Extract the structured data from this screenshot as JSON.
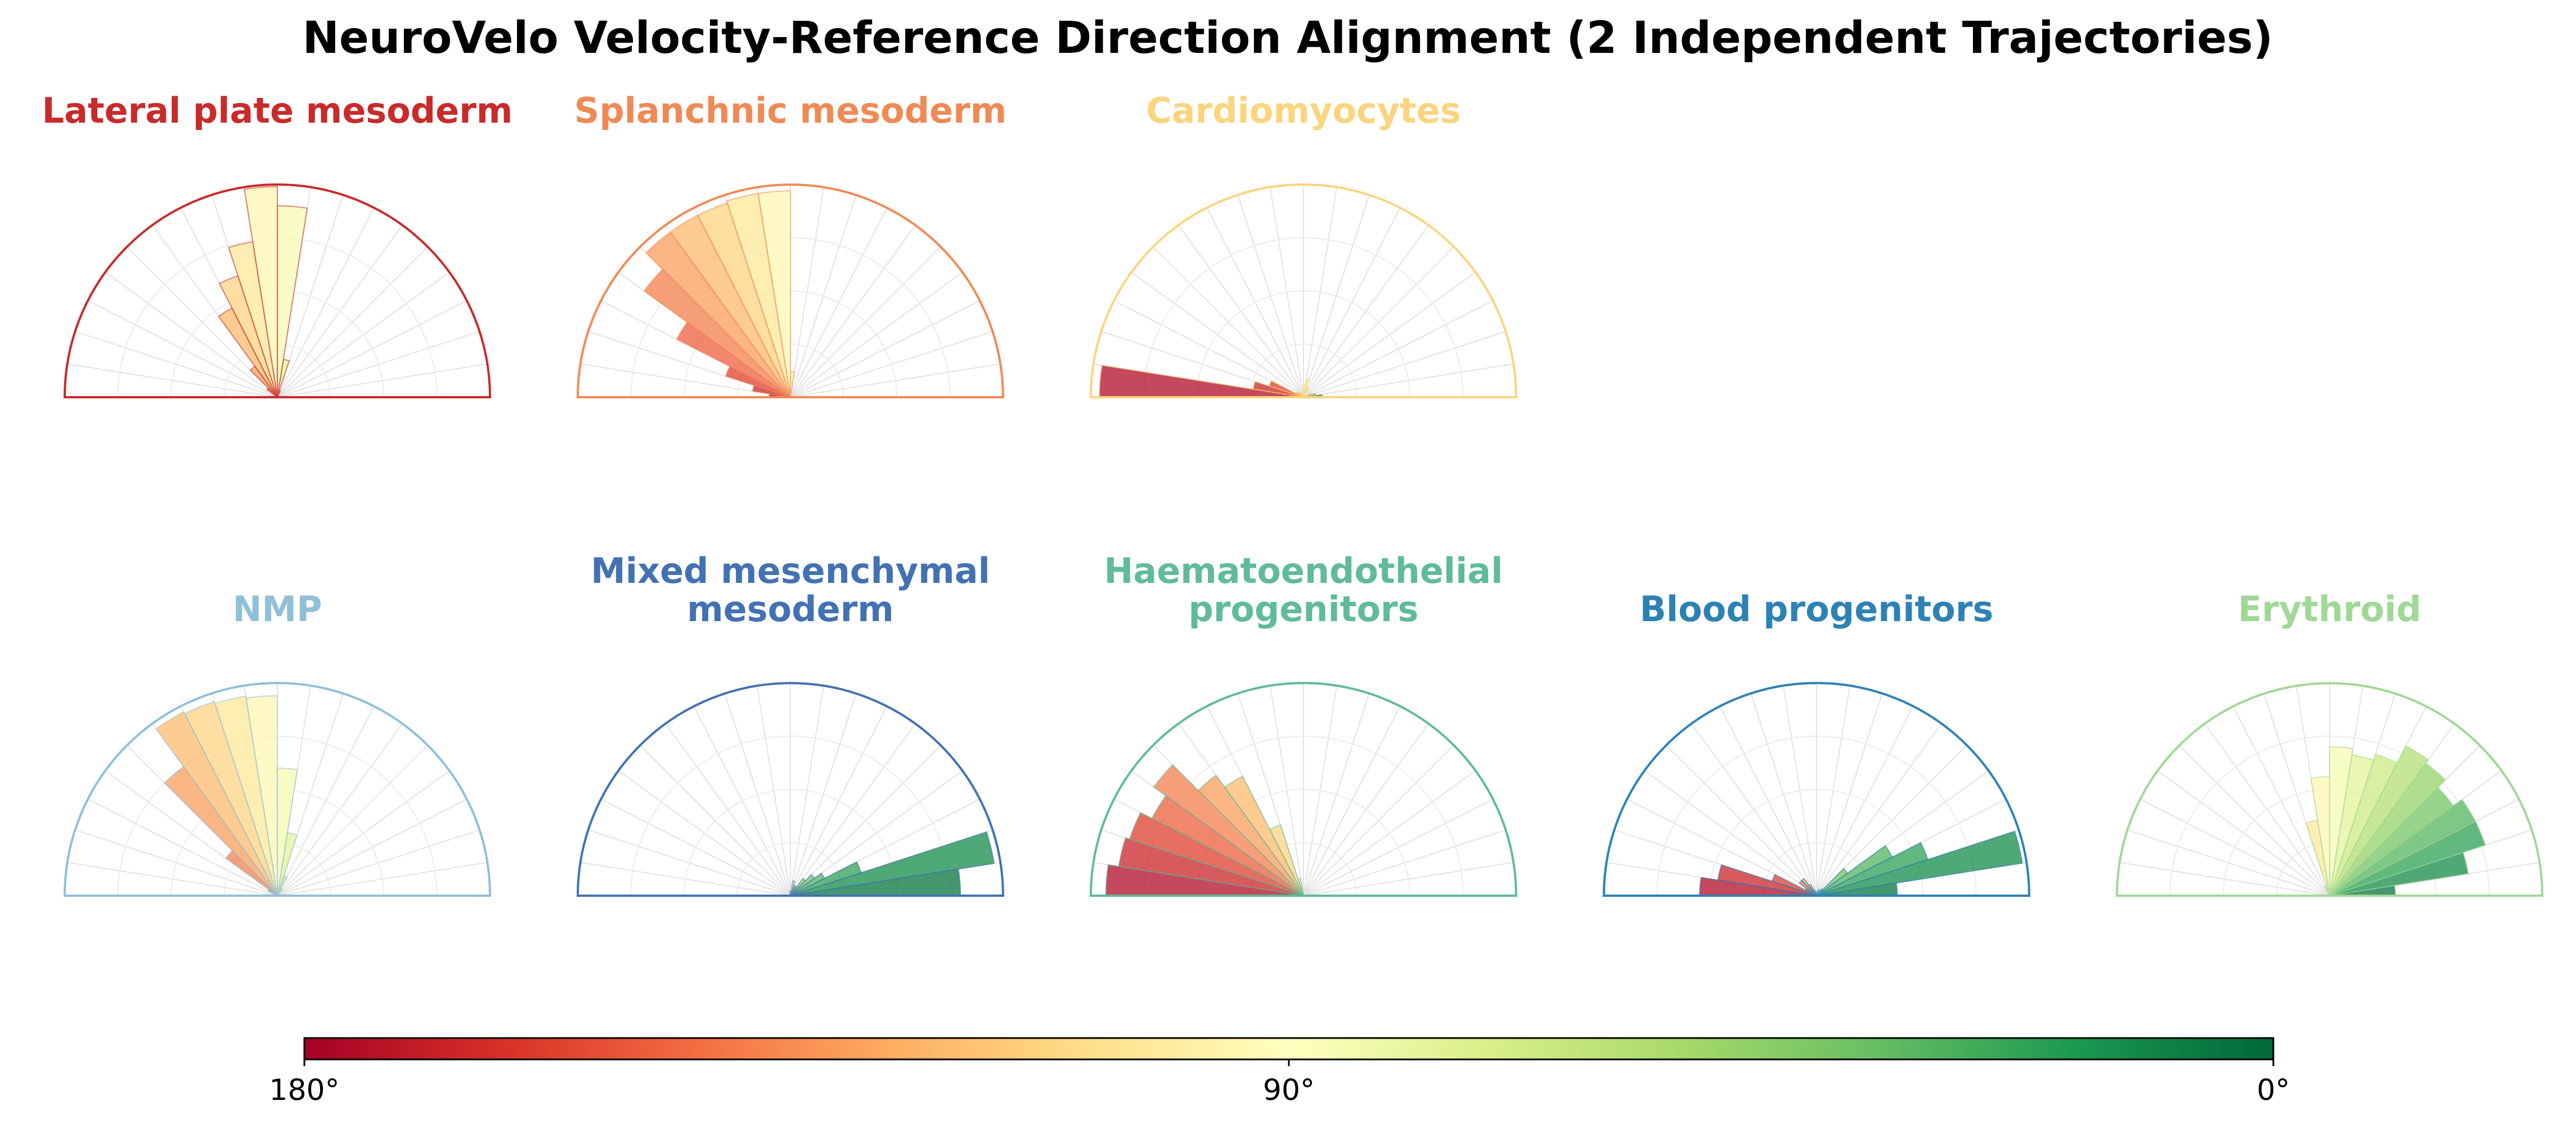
{
  "chart_data": {
    "type": "polar-histogram",
    "title": "NeuroVelo Velocity-Reference Direction Alignment (2 Independent Trajectories)",
    "angle_unit": "degrees",
    "bin_width": 9,
    "bin_centers": [
      4.5,
      13.5,
      22.5,
      31.5,
      40.5,
      49.5,
      58.5,
      67.5,
      76.5,
      85.5,
      94.5,
      103.5,
      112.5,
      121.5,
      130.5,
      139.5,
      148.5,
      157.5,
      166.5,
      175.5
    ],
    "rmax": 1.0,
    "panels": [
      {
        "name": "Lateral plate mesoderm",
        "color": "#c92a2a",
        "values": [
          0,
          0,
          0,
          0,
          0,
          0,
          0,
          0.03,
          0.18,
          0.9,
          0.99,
          0.74,
          0.6,
          0.47,
          0.18,
          0.06,
          0,
          0,
          0,
          0
        ]
      },
      {
        "name": "Splanchnic mesoderm",
        "color": "#f08a55",
        "values": [
          0,
          0,
          0,
          0,
          0,
          0,
          0,
          0,
          0,
          0.12,
          0.97,
          0.97,
          0.96,
          0.96,
          0.96,
          0.85,
          0.6,
          0.32,
          0.18,
          0.1
        ]
      },
      {
        "name": "Cardiomyocytes",
        "color": "#fbd47d",
        "values": [
          0.09,
          0.06,
          0.04,
          0.01,
          0.01,
          0.01,
          0.01,
          0.05,
          0.09,
          0.06,
          0.03,
          0.01,
          0.01,
          0.02,
          0.03,
          0.03,
          0.04,
          0.17,
          0.24,
          0.96
        ]
      },
      {
        "name": "NMP",
        "color": "#8fc0d8",
        "values": [
          0,
          0,
          0,
          0,
          0,
          0,
          0.04,
          0.1,
          0.3,
          0.6,
          0.94,
          0.95,
          0.96,
          0.97,
          0.75,
          0.3,
          0.05,
          0,
          0,
          0
        ]
      },
      {
        "name": "Mixed mesenchymal mesoderm",
        "color": "#4272b3",
        "values": [
          0.8,
          0.97,
          0.35,
          0.18,
          0.14,
          0.1,
          0.05,
          0.05,
          0.07,
          0.02,
          0.02,
          0,
          0,
          0,
          0,
          0,
          0,
          0,
          0,
          0
        ]
      },
      {
        "name": "Haematoendothelial progenitors",
        "color": "#5fbb9a",
        "values": [
          0,
          0,
          0,
          0,
          0,
          0,
          0,
          0,
          0,
          0,
          0.01,
          0.08,
          0.35,
          0.63,
          0.7,
          0.87,
          0.8,
          0.86,
          0.88,
          0.93
        ]
      },
      {
        "name": "Blood progenitors",
        "color": "#2d82b5",
        "values": [
          0.38,
          0.98,
          0.55,
          0.4,
          0.18,
          0.04,
          0,
          0.03,
          0.02,
          0.01,
          0,
          0.02,
          0.03,
          0.06,
          0.1,
          0.1,
          0.06,
          0.22,
          0.47,
          0.55
        ]
      },
      {
        "name": "Erythroid",
        "color": "#a0d896",
        "values": [
          0.31,
          0.66,
          0.77,
          0.77,
          0.72,
          0.77,
          0.79,
          0.7,
          0.67,
          0.7,
          0.56,
          0.36,
          0.05,
          0,
          0,
          0,
          0,
          0,
          0,
          0
        ]
      }
    ],
    "colorbar": {
      "tick_labels": [
        "180°",
        "90°",
        "0°"
      ],
      "range": [
        180,
        0
      ],
      "colormap": [
        "#a50026",
        "#d73027",
        "#f46d43",
        "#fdae61",
        "#fee08b",
        "#ffffbf",
        "#d9ef8b",
        "#a6d96a",
        "#66bd63",
        "#1a9850",
        "#006837"
      ]
    }
  }
}
